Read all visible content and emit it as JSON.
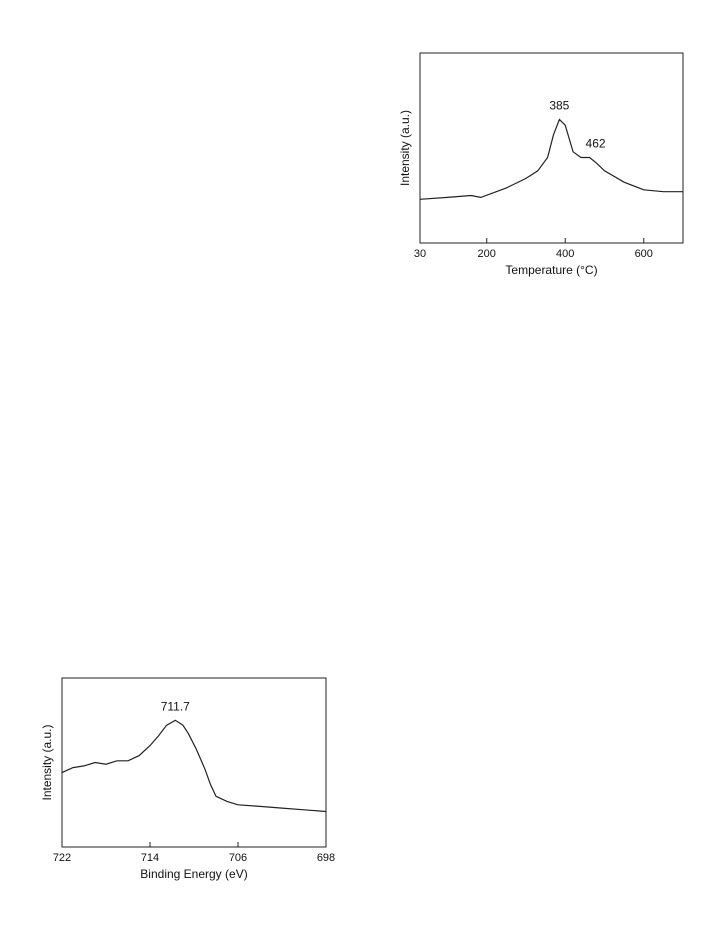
{
  "chart_data": [
    {
      "type": "line",
      "xlabel": "Temperature (°C)",
      "ylabel": "Intensity (a.u.)",
      "x": [
        30,
        100,
        160,
        185,
        250,
        300,
        330,
        355,
        370,
        385,
        400,
        420,
        440,
        462,
        480,
        500,
        550,
        600,
        650,
        700
      ],
      "values": [
        23,
        24,
        25,
        24,
        29,
        34,
        38,
        45,
        57,
        65,
        62,
        48,
        45,
        45,
        42,
        38,
        32,
        28,
        27,
        27
      ],
      "color": "#222",
      "xlim": [
        30,
        700
      ],
      "ylim": [
        0,
        100
      ],
      "xticks": [
        30,
        200,
        400,
        600
      ],
      "annotations": [
        385,
        462
      ]
    },
    {
      "type": "line",
      "xlabel": "Binding Energy (eV)",
      "ylabel": "Intensity (a.u.)",
      "x": [
        722,
        721,
        720,
        719,
        718,
        717,
        716,
        715,
        714,
        713.2,
        712.5,
        711.7,
        711,
        710.5,
        709.8,
        709,
        708.5,
        708,
        707,
        706,
        704,
        702,
        700,
        698
      ],
      "values": [
        44,
        47,
        48,
        50,
        49,
        51,
        51,
        54,
        60,
        66,
        72,
        75,
        72,
        67,
        58,
        46,
        37,
        30,
        27,
        25,
        24,
        23,
        22,
        21
      ],
      "color": "#222",
      "xlim": [
        722,
        698
      ],
      "ylim": [
        0,
        100
      ],
      "xticks": [
        722,
        714,
        706,
        698
      ],
      "annotations": [
        711.7
      ]
    }
  ]
}
